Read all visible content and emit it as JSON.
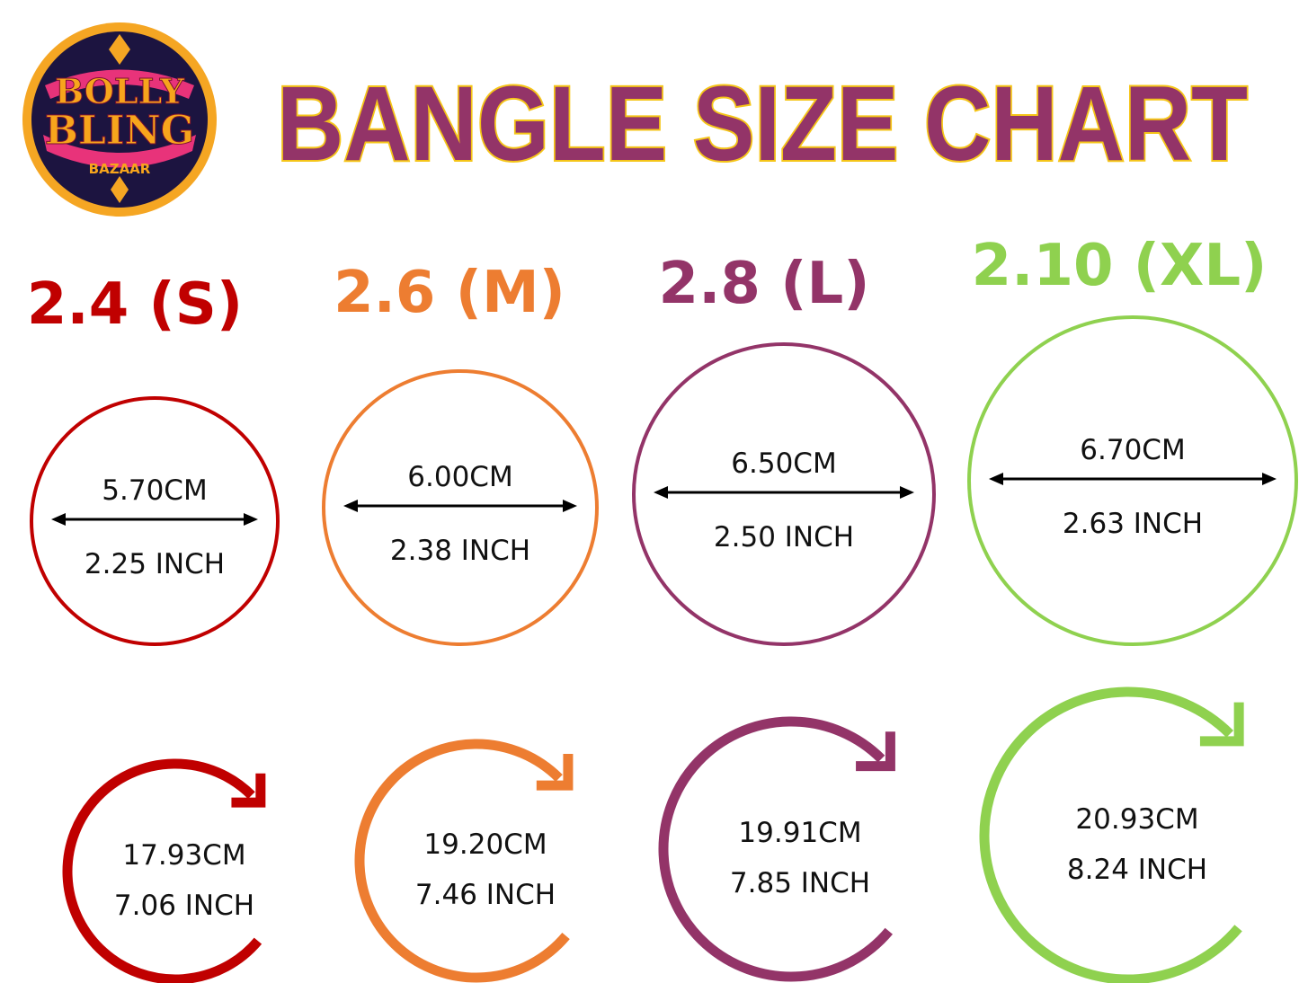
{
  "logo": {
    "line1": "BOLLY",
    "line2": "BLING",
    "line3": "BAZAAR",
    "colors": {
      "ring": "#f5a623",
      "bg": "#1c1440",
      "accent": "#e8337a",
      "text": "#f7a51c"
    }
  },
  "title": {
    "text": "BANGLE SIZE CHART",
    "fill": "#933468",
    "outline": "#f5c518"
  },
  "sizes": [
    {
      "label": "2.4 (S)",
      "color": "#c00000",
      "diameter_cm": "5.70CM",
      "diameter_inch": "2.25 INCH",
      "circumference_cm": "17.93CM",
      "circumference_inch": "7.06 INCH"
    },
    {
      "label": "2.6 (M)",
      "color": "#ed7d31",
      "diameter_cm": "6.00CM",
      "diameter_inch": "2.38 INCH",
      "circumference_cm": "19.20CM",
      "circumference_inch": "7.46 INCH"
    },
    {
      "label": "2.8 (L)",
      "color": "#933468",
      "diameter_cm": "6.50CM",
      "diameter_inch": "2.50 INCH",
      "circumference_cm": "19.91CM",
      "circumference_inch": "7.85 INCH"
    },
    {
      "label": "2.10 (XL)",
      "color": "#8fd14f",
      "diameter_cm": "6.70CM",
      "diameter_inch": "2.63 INCH",
      "circumference_cm": "20.93CM",
      "circumference_inch": "8.24 INCH"
    }
  ]
}
